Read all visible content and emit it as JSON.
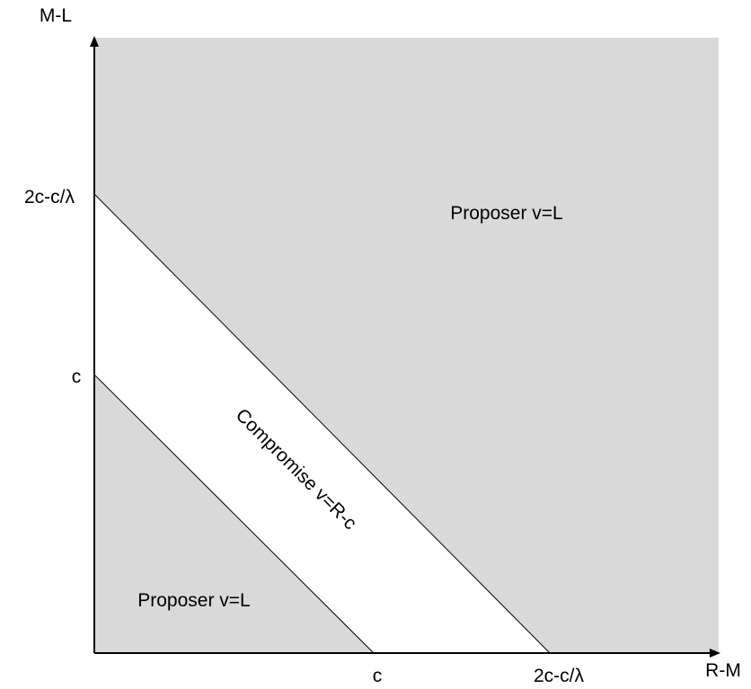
{
  "diagram": {
    "axes": {
      "y_label": "M-L",
      "x_label": "R-M"
    },
    "ticks": {
      "y_upper": "2c-c/λ",
      "y_lower": "c",
      "x_lower": "c",
      "x_upper": "2c-c/λ"
    },
    "regions": {
      "upper_right": "Proposer v=L",
      "lower_left": "Proposer v=L",
      "middle_band": "Compromise v=R-c"
    },
    "colors": {
      "proposer_region": "#d9d9d9",
      "compromise_region": "#ffffff",
      "axis": "#000000"
    }
  }
}
